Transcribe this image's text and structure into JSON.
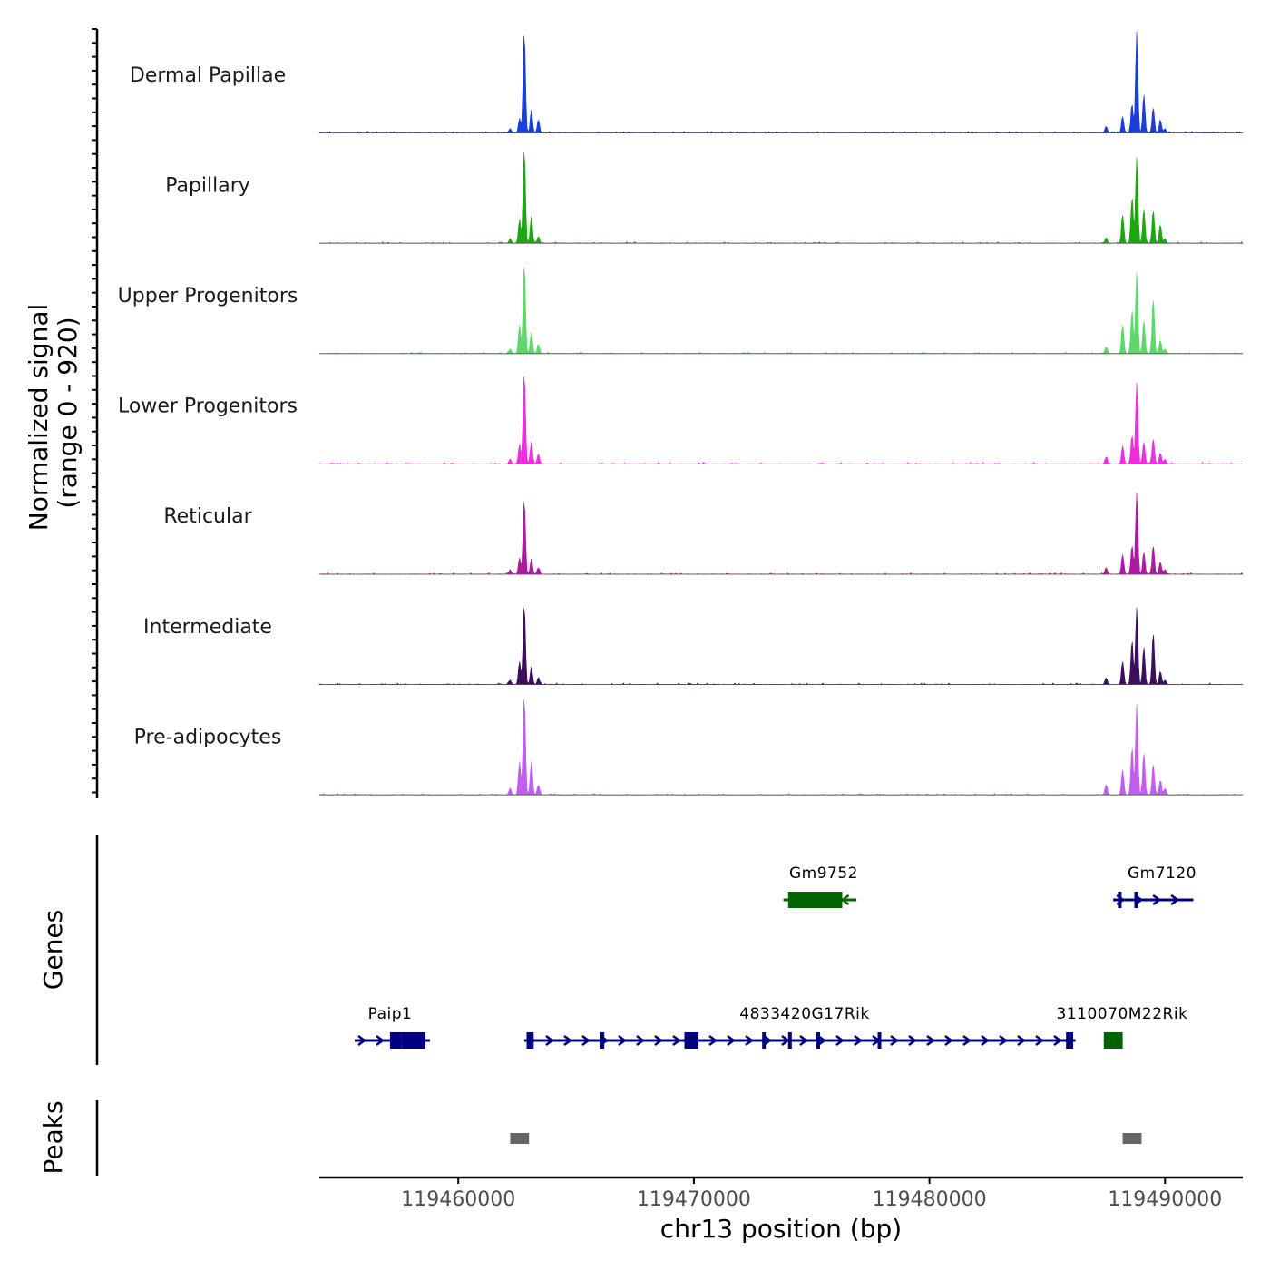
{
  "chart_data": {
    "type": "area",
    "title": "",
    "chromosome": "chr13",
    "xlabel": "chr13 position (bp)",
    "ylabel": "Normalized signal",
    "ylabel_range": "(range 0 - 920)",
    "ylim": [
      0,
      920
    ],
    "xlim": [
      119454100,
      119493300
    ],
    "x_ticks": [
      119460000,
      119470000,
      119480000,
      119490000
    ],
    "x_tick_labels": [
      "119460000",
      "119470000",
      "119480000",
      "119490000"
    ],
    "series": [
      {
        "name": "Dermal Papillae",
        "color": "#1a3fd8",
        "peaks": [
          [
            119462200,
            40
          ],
          [
            119462600,
            130
          ],
          [
            119462800,
            920
          ],
          [
            119463100,
            210
          ],
          [
            119463400,
            120
          ],
          [
            119487500,
            60
          ],
          [
            119488200,
            150
          ],
          [
            119488600,
            260
          ],
          [
            119488800,
            920
          ],
          [
            119489100,
            350
          ],
          [
            119489500,
            230
          ],
          [
            119489800,
            120
          ],
          [
            119490000,
            40
          ]
        ]
      },
      {
        "name": "Papillary",
        "color": "#1aa80f",
        "peaks": [
          [
            119462200,
            40
          ],
          [
            119462600,
            220
          ],
          [
            119462800,
            860
          ],
          [
            119463100,
            240
          ],
          [
            119463400,
            60
          ],
          [
            119487500,
            50
          ],
          [
            119488200,
            260
          ],
          [
            119488600,
            420
          ],
          [
            119488800,
            780
          ],
          [
            119489100,
            310
          ],
          [
            119489500,
            300
          ],
          [
            119489800,
            170
          ],
          [
            119490000,
            40
          ]
        ]
      },
      {
        "name": "Upper Progenitors",
        "color": "#5ed86a",
        "peaks": [
          [
            119462200,
            40
          ],
          [
            119462600,
            260
          ],
          [
            119462800,
            820
          ],
          [
            119463100,
            190
          ],
          [
            119463400,
            80
          ],
          [
            119487500,
            60
          ],
          [
            119488200,
            260
          ],
          [
            119488600,
            400
          ],
          [
            119488800,
            740
          ],
          [
            119489100,
            300
          ],
          [
            119489500,
            500
          ],
          [
            119489800,
            120
          ],
          [
            119490000,
            40
          ]
        ]
      },
      {
        "name": "Lower Progenitors",
        "color": "#ee2ee0",
        "peaks": [
          [
            119462200,
            40
          ],
          [
            119462600,
            180
          ],
          [
            119462800,
            830
          ],
          [
            119463100,
            200
          ],
          [
            119463400,
            90
          ],
          [
            119487500,
            60
          ],
          [
            119488200,
            160
          ],
          [
            119488600,
            260
          ],
          [
            119488800,
            740
          ],
          [
            119489100,
            200
          ],
          [
            119489500,
            230
          ],
          [
            119489800,
            100
          ],
          [
            119490000,
            40
          ]
        ]
      },
      {
        "name": "Reticular",
        "color": "#ad1aa0",
        "peaks": [
          [
            119462200,
            40
          ],
          [
            119462600,
            150
          ],
          [
            119462800,
            680
          ],
          [
            119463100,
            140
          ],
          [
            119463400,
            60
          ],
          [
            119487500,
            60
          ],
          [
            119488200,
            180
          ],
          [
            119488600,
            260
          ],
          [
            119488800,
            740
          ],
          [
            119489100,
            200
          ],
          [
            119489500,
            260
          ],
          [
            119489800,
            110
          ],
          [
            119490000,
            40
          ]
        ]
      },
      {
        "name": "Intermediate",
        "color": "#3b0f5e",
        "peaks": [
          [
            119462200,
            40
          ],
          [
            119462600,
            210
          ],
          [
            119462800,
            720
          ],
          [
            119463100,
            160
          ],
          [
            119463400,
            60
          ],
          [
            119487500,
            60
          ],
          [
            119488200,
            210
          ],
          [
            119488600,
            400
          ],
          [
            119488800,
            700
          ],
          [
            119489100,
            340
          ],
          [
            119489500,
            470
          ],
          [
            119489800,
            120
          ],
          [
            119490000,
            40
          ]
        ]
      },
      {
        "name": "Pre-adipocytes",
        "color": "#c05ef0",
        "peaks": [
          [
            119462200,
            60
          ],
          [
            119462600,
            300
          ],
          [
            119462800,
            900
          ],
          [
            119463100,
            300
          ],
          [
            119463400,
            80
          ],
          [
            119487500,
            90
          ],
          [
            119488200,
            230
          ],
          [
            119488600,
            430
          ],
          [
            119488800,
            820
          ],
          [
            119489100,
            380
          ],
          [
            119489500,
            280
          ],
          [
            119489800,
            130
          ],
          [
            119490000,
            60
          ]
        ]
      }
    ],
    "genes": [
      {
        "name": "Paip1",
        "strand": "+",
        "color": "#000080",
        "start": 119455600,
        "end": 119458800,
        "exons": [
          [
            119457100,
            119457600
          ],
          [
            119457600,
            119458600
          ]
        ]
      },
      {
        "name": "4833420G17Rik",
        "strand": "+",
        "color": "#000080",
        "start": 119462800,
        "end": 119486200,
        "exons": [
          [
            119462900,
            119463200
          ],
          [
            119466000,
            119466200
          ],
          [
            119469600,
            119470200
          ],
          [
            119472900,
            119473000
          ],
          [
            119474000,
            119474100
          ],
          [
            119475200,
            119475300
          ],
          [
            119477800,
            119477950
          ],
          [
            119485800,
            119486100
          ]
        ]
      },
      {
        "name": "Gm9752",
        "strand": "-",
        "color": "#006400",
        "start": 119473800,
        "end": 119476900,
        "exons": [
          [
            119474000,
            119476300
          ]
        ]
      },
      {
        "name": "Gm7120",
        "strand": "+",
        "color": "#000080",
        "start": 119487800,
        "end": 119491200,
        "exons": [
          [
            119488000,
            119488150
          ],
          [
            119488700,
            119488850
          ]
        ]
      },
      {
        "name": "3110070M22Rik",
        "strand": "+",
        "color": "#006400",
        "start": 119487400,
        "end": 119488200,
        "exons": [
          [
            119487400,
            119488200
          ]
        ]
      }
    ],
    "peaks_track": [
      [
        119462200,
        119463000
      ],
      [
        119488200,
        119489000
      ]
    ],
    "panel_labels": {
      "genes": "Genes",
      "peaks": "Peaks"
    }
  }
}
